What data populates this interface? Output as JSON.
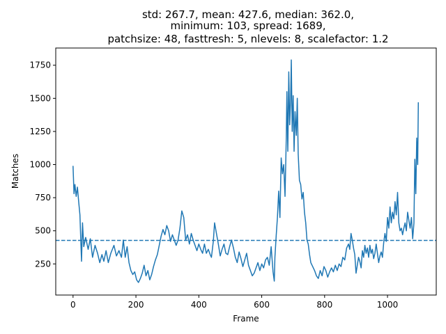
{
  "chart_data": {
    "type": "line",
    "title_lines": [
      "std: 267.7, mean: 427.6, median: 362.0,",
      "minimum: 103, spread: 1689,",
      "patchsize: 48, fasttresh: 5, nlevels: 8, scalefactor: 1.2"
    ],
    "xlabel": "Frame",
    "ylabel": "Matches",
    "xlim": [
      -55,
      1155
    ],
    "ylim": [
      15,
      1880
    ],
    "xticks": [
      0,
      200,
      400,
      600,
      800,
      1000
    ],
    "yticks": [
      250,
      500,
      750,
      1000,
      1250,
      1500,
      1750
    ],
    "grid": false,
    "series": [
      {
        "color": "#1f77b4",
        "points": [
          [
            0,
            990
          ],
          [
            3,
            780
          ],
          [
            6,
            850
          ],
          [
            10,
            760
          ],
          [
            14,
            830
          ],
          [
            18,
            720
          ],
          [
            22,
            620
          ],
          [
            25,
            400
          ],
          [
            27,
            270
          ],
          [
            30,
            560
          ],
          [
            34,
            380
          ],
          [
            40,
            450
          ],
          [
            48,
            360
          ],
          [
            55,
            440
          ],
          [
            62,
            300
          ],
          [
            70,
            390
          ],
          [
            78,
            330
          ],
          [
            85,
            260
          ],
          [
            92,
            320
          ],
          [
            98,
            270
          ],
          [
            105,
            350
          ],
          [
            112,
            260
          ],
          [
            120,
            330
          ],
          [
            130,
            390
          ],
          [
            138,
            310
          ],
          [
            146,
            350
          ],
          [
            154,
            300
          ],
          [
            160,
            430
          ],
          [
            166,
            300
          ],
          [
            172,
            380
          ],
          [
            178,
            260
          ],
          [
            184,
            200
          ],
          [
            190,
            170
          ],
          [
            196,
            190
          ],
          [
            202,
            130
          ],
          [
            208,
            110
          ],
          [
            214,
            140
          ],
          [
            220,
            180
          ],
          [
            226,
            240
          ],
          [
            232,
            160
          ],
          [
            238,
            200
          ],
          [
            244,
            130
          ],
          [
            250,
            170
          ],
          [
            256,
            230
          ],
          [
            262,
            280
          ],
          [
            268,
            320
          ],
          [
            274,
            390
          ],
          [
            280,
            460
          ],
          [
            286,
            510
          ],
          [
            292,
            470
          ],
          [
            298,
            540
          ],
          [
            304,
            500
          ],
          [
            310,
            420
          ],
          [
            316,
            470
          ],
          [
            322,
            430
          ],
          [
            328,
            390
          ],
          [
            334,
            430
          ],
          [
            340,
            520
          ],
          [
            346,
            650
          ],
          [
            352,
            600
          ],
          [
            358,
            430
          ],
          [
            364,
            470
          ],
          [
            370,
            400
          ],
          [
            376,
            480
          ],
          [
            382,
            430
          ],
          [
            388,
            390
          ],
          [
            394,
            350
          ],
          [
            400,
            400
          ],
          [
            406,
            360
          ],
          [
            412,
            330
          ],
          [
            418,
            400
          ],
          [
            424,
            330
          ],
          [
            430,
            360
          ],
          [
            436,
            320
          ],
          [
            440,
            300
          ],
          [
            446,
            420
          ],
          [
            450,
            560
          ],
          [
            456,
            480
          ],
          [
            462,
            400
          ],
          [
            468,
            310
          ],
          [
            474,
            360
          ],
          [
            480,
            400
          ],
          [
            486,
            330
          ],
          [
            492,
            320
          ],
          [
            498,
            380
          ],
          [
            504,
            430
          ],
          [
            510,
            370
          ],
          [
            516,
            300
          ],
          [
            522,
            260
          ],
          [
            528,
            340
          ],
          [
            534,
            290
          ],
          [
            540,
            230
          ],
          [
            546,
            280
          ],
          [
            552,
            330
          ],
          [
            558,
            240
          ],
          [
            564,
            200
          ],
          [
            570,
            160
          ],
          [
            576,
            180
          ],
          [
            582,
            220
          ],
          [
            588,
            260
          ],
          [
            594,
            200
          ],
          [
            600,
            250
          ],
          [
            606,
            220
          ],
          [
            612,
            280
          ],
          [
            618,
            300
          ],
          [
            624,
            240
          ],
          [
            630,
            380
          ],
          [
            636,
            190
          ],
          [
            640,
            120
          ],
          [
            642,
            300
          ],
          [
            646,
            460
          ],
          [
            650,
            600
          ],
          [
            654,
            800
          ],
          [
            658,
            600
          ],
          [
            662,
            1050
          ],
          [
            666,
            930
          ],
          [
            670,
            1000
          ],
          [
            674,
            760
          ],
          [
            678,
            1200
          ],
          [
            680,
            1550
          ],
          [
            683,
            1100
          ],
          [
            686,
            1700
          ],
          [
            689,
            1300
          ],
          [
            692,
            1500
          ],
          [
            694,
            1790
          ],
          [
            697,
            1250
          ],
          [
            700,
            1520
          ],
          [
            703,
            1100
          ],
          [
            706,
            1400
          ],
          [
            710,
            1220
          ],
          [
            713,
            1500
          ],
          [
            716,
            1080
          ],
          [
            720,
            880
          ],
          [
            724,
            850
          ],
          [
            728,
            740
          ],
          [
            732,
            790
          ],
          [
            736,
            640
          ],
          [
            740,
            560
          ],
          [
            744,
            430
          ],
          [
            748,
            400
          ],
          [
            752,
            320
          ],
          [
            756,
            260
          ],
          [
            762,
            230
          ],
          [
            768,
            200
          ],
          [
            774,
            160
          ],
          [
            780,
            140
          ],
          [
            786,
            200
          ],
          [
            792,
            160
          ],
          [
            798,
            230
          ],
          [
            804,
            200
          ],
          [
            810,
            150
          ],
          [
            816,
            190
          ],
          [
            822,
            220
          ],
          [
            828,
            190
          ],
          [
            834,
            240
          ],
          [
            840,
            200
          ],
          [
            846,
            250
          ],
          [
            852,
            230
          ],
          [
            858,
            300
          ],
          [
            864,
            280
          ],
          [
            870,
            370
          ],
          [
            876,
            400
          ],
          [
            880,
            360
          ],
          [
            884,
            480
          ],
          [
            888,
            430
          ],
          [
            892,
            370
          ],
          [
            896,
            320
          ],
          [
            900,
            180
          ],
          [
            904,
            240
          ],
          [
            908,
            300
          ],
          [
            912,
            270
          ],
          [
            916,
            220
          ],
          [
            920,
            350
          ],
          [
            924,
            300
          ],
          [
            928,
            390
          ],
          [
            932,
            330
          ],
          [
            936,
            370
          ],
          [
            940,
            300
          ],
          [
            944,
            390
          ],
          [
            948,
            330
          ],
          [
            952,
            360
          ],
          [
            956,
            290
          ],
          [
            960,
            330
          ],
          [
            964,
            400
          ],
          [
            968,
            330
          ],
          [
            972,
            260
          ],
          [
            976,
            310
          ],
          [
            980,
            340
          ],
          [
            984,
            300
          ],
          [
            988,
            410
          ],
          [
            992,
            480
          ],
          [
            996,
            420
          ],
          [
            1000,
            600
          ],
          [
            1004,
            520
          ],
          [
            1008,
            680
          ],
          [
            1012,
            560
          ],
          [
            1016,
            640
          ],
          [
            1020,
            590
          ],
          [
            1024,
            720
          ],
          [
            1028,
            620
          ],
          [
            1032,
            790
          ],
          [
            1036,
            560
          ],
          [
            1040,
            500
          ],
          [
            1044,
            520
          ],
          [
            1048,
            470
          ],
          [
            1052,
            520
          ],
          [
            1056,
            560
          ],
          [
            1060,
            500
          ],
          [
            1064,
            640
          ],
          [
            1068,
            580
          ],
          [
            1072,
            520
          ],
          [
            1076,
            600
          ],
          [
            1080,
            440
          ],
          [
            1084,
            560
          ],
          [
            1087,
            1040
          ],
          [
            1090,
            780
          ],
          [
            1093,
            1200
          ],
          [
            1096,
            1000
          ],
          [
            1098,
            1470
          ]
        ]
      },
      {
        "style": "dashed",
        "color": "#1f77b4",
        "y": 427.6
      }
    ]
  }
}
